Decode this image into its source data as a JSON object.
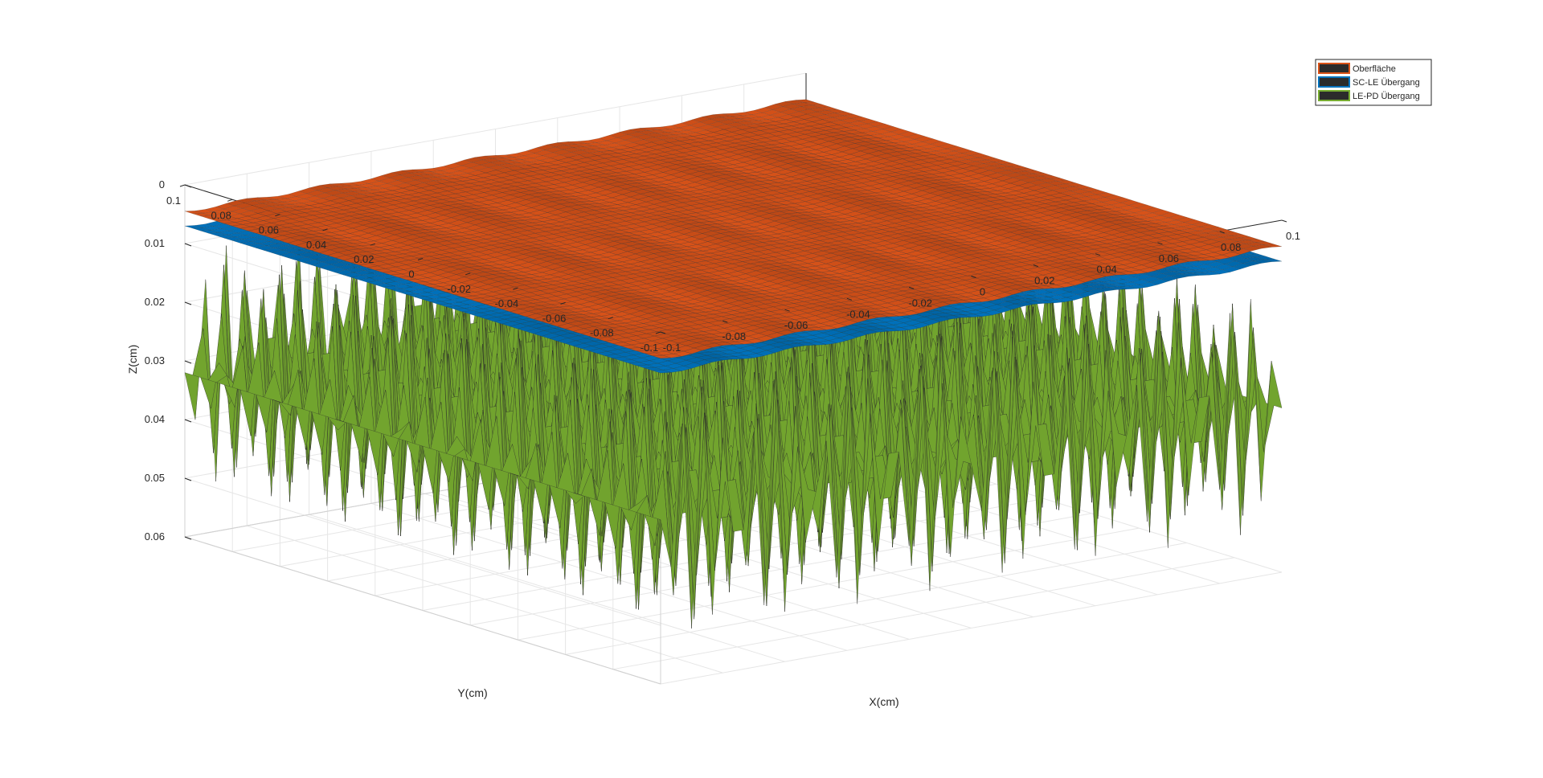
{
  "chart_data": {
    "type": "surface",
    "xlabel": "X(cm)",
    "ylabel": "Y(cm)",
    "zlabel": "Z(cm)",
    "xlim": [
      -0.1,
      0.1
    ],
    "ylim": [
      -0.1,
      0.1
    ],
    "zlim": [
      0,
      0.06
    ],
    "z_direction": "reverse",
    "x_ticks": [
      -0.1,
      -0.08,
      -0.06,
      -0.04,
      -0.02,
      0,
      0.02,
      0.04,
      0.06,
      0.08,
      0.1
    ],
    "y_ticks": [
      -0.1,
      -0.08,
      -0.06,
      -0.04,
      -0.02,
      0,
      0.02,
      0.04,
      0.06,
      0.08,
      0.1
    ],
    "z_ticks": [
      0,
      0.01,
      0.02,
      0.03,
      0.04,
      0.05,
      0.06
    ],
    "grid": true,
    "legend_position": "top-right",
    "series": [
      {
        "name": "Oberfläche",
        "color": "#d95319",
        "edge_color": "#2b2b2b",
        "mean_z": 0.0045,
        "amplitude": 0.0003,
        "periods_x": 8,
        "periods_y": 2
      },
      {
        "name": "SC-LE Übergang",
        "color": "#0072bd",
        "edge_color": "#2b2b2b",
        "mean_z": 0.007,
        "amplitude": 0.0003,
        "periods_x": 8,
        "periods_y": 2
      },
      {
        "name": "LE-PD Übergang",
        "color": "#77ac30",
        "edge_color": "#2b2b2b",
        "mean_z": 0.032,
        "amplitude": 0.0205,
        "periods_x": 26,
        "periods_y": 26
      }
    ]
  }
}
